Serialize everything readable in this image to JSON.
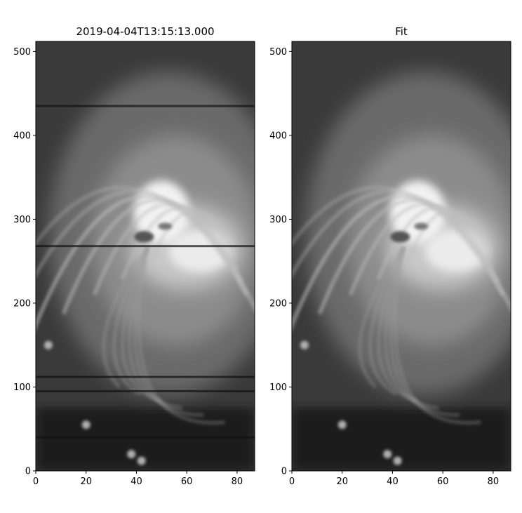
{
  "chart_data": [
    {
      "type": "heatmap",
      "title": "2019-04-04T13:15:13.000",
      "colormap": "gray",
      "xlim": [
        0,
        87
      ],
      "ylim": [
        0,
        512
      ],
      "x_ticks": [
        0,
        20,
        40,
        60,
        80
      ],
      "y_ticks": [
        0,
        100,
        200,
        300,
        400,
        500
      ],
      "features": {
        "bright_core_center": [
          50,
          300
        ],
        "horizontal_artifact_rows": [
          435,
          268,
          112,
          95,
          40
        ]
      }
    },
    {
      "type": "heatmap",
      "title": "Fit",
      "colormap": "gray",
      "xlim": [
        0,
        87
      ],
      "ylim": [
        0,
        512
      ],
      "x_ticks": [
        0,
        20,
        40,
        60,
        80
      ],
      "y_ticks": [
        0,
        100,
        200,
        300,
        400,
        500
      ],
      "features": {
        "bright_core_center": [
          50,
          300
        ],
        "horizontal_artifact_rows": []
      }
    }
  ]
}
